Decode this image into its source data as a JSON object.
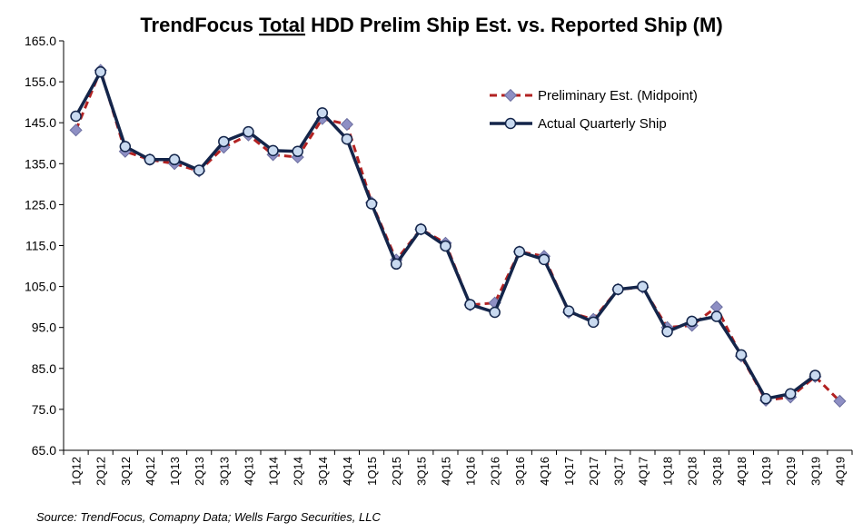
{
  "chart_data": {
    "type": "line",
    "title_parts": [
      "TrendFocus ",
      "Total",
      " HDD Prelim Ship Est. vs. Reported Ship (M)"
    ],
    "categories": [
      "1Q12",
      "2Q12",
      "3Q12",
      "4Q12",
      "1Q13",
      "2Q13",
      "3Q13",
      "4Q13",
      "1Q14",
      "2Q14",
      "3Q14",
      "4Q14",
      "1Q15",
      "2Q15",
      "3Q15",
      "4Q15",
      "1Q16",
      "2Q16",
      "3Q16",
      "4Q16",
      "1Q17",
      "2Q17",
      "3Q17",
      "4Q17",
      "1Q18",
      "2Q18",
      "3Q18",
      "4Q18",
      "1Q19",
      "2Q19",
      "3Q19",
      "4Q19"
    ],
    "ylim": [
      65,
      165
    ],
    "yticks": [
      "65.0",
      "75.0",
      "85.0",
      "95.0",
      "105.0",
      "115.0",
      "125.0",
      "135.0",
      "145.0",
      "155.0",
      "165.0"
    ],
    "series": [
      {
        "name": "Preliminary Est. (Midpoint)",
        "color": "#b22222",
        "marker_color": "#8e8fc4",
        "style": "dashed-diamond",
        "values": [
          143.2,
          157.8,
          138.0,
          136.0,
          135.0,
          133.2,
          139.0,
          142.0,
          137.2,
          136.6,
          146.0,
          144.6,
          125.5,
          111.5,
          119.0,
          115.6,
          100.5,
          101.0,
          113.5,
          112.4,
          98.7,
          97.0,
          104.3,
          104.8,
          95.0,
          95.5,
          100.0,
          88.0,
          77.2,
          78.0,
          83.0,
          77.0
        ]
      },
      {
        "name": "Actual Quarterly Ship",
        "color": "#14254a",
        "marker_color": "#c9daf0",
        "style": "solid-circle",
        "values": [
          146.6,
          157.4,
          139.2,
          136.0,
          136.0,
          133.4,
          140.4,
          142.8,
          138.2,
          138.0,
          147.4,
          141.0,
          125.2,
          110.5,
          119.0,
          114.9,
          100.6,
          98.7,
          113.5,
          111.6,
          99.0,
          96.3,
          104.3,
          105.0,
          94.0,
          96.5,
          97.7,
          88.3,
          77.6,
          78.8,
          83.3,
          null
        ]
      }
    ],
    "legend_position": "upper-right",
    "grid": false
  },
  "source": "Source: TrendFocus, Comapny Data; Wells Fargo Securities, LLC"
}
